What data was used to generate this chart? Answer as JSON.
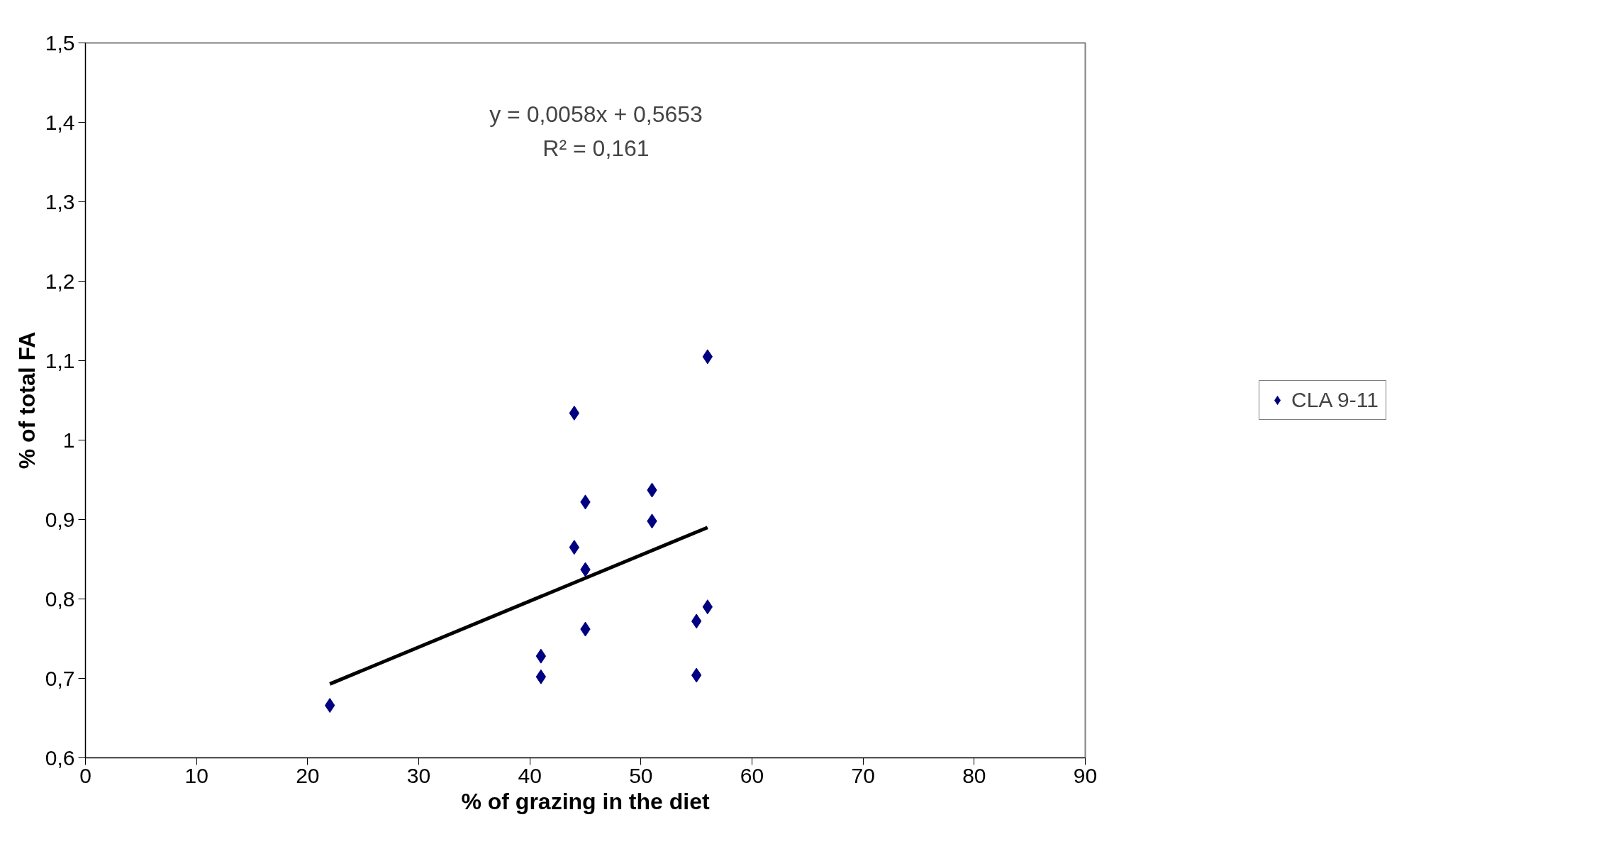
{
  "chart_data": {
    "type": "scatter",
    "xlabel": "% of grazing in the diet",
    "ylabel": "% of total FA",
    "xlim": [
      0,
      90
    ],
    "xticks": [
      0,
      10,
      20,
      30,
      40,
      50,
      60,
      70,
      80,
      90
    ],
    "ylim": [
      0.6,
      1.5
    ],
    "yticks": [
      {
        "value": 0.6,
        "label": "0,6"
      },
      {
        "value": 0.7,
        "label": "0,7"
      },
      {
        "value": 0.8,
        "label": "0,8"
      },
      {
        "value": 0.9,
        "label": "0,9"
      },
      1,
      {
        "value": 1.1,
        "label": "1,1"
      },
      {
        "value": 1.2,
        "label": "1,2"
      },
      {
        "value": 1.3,
        "label": "1,3"
      },
      {
        "value": 1.4,
        "label": "1,4"
      },
      {
        "value": 1.5,
        "label": "1,5"
      }
    ],
    "series": [
      {
        "name": "CLA 9-11",
        "color": "#000080",
        "x": [
          22,
          41,
          41,
          44,
          44,
          45,
          45,
          45,
          51,
          51,
          55,
          55,
          56,
          56
        ],
        "values": [
          0.666,
          0.728,
          0.702,
          1.034,
          0.865,
          0.922,
          0.837,
          0.762,
          0.937,
          0.898,
          0.772,
          0.704,
          1.105,
          0.79
        ],
        "marker": "diamond"
      },
      {
        "type": "line",
        "color": "#000000",
        "x": [
          22,
          56
        ],
        "values": [
          0.693,
          0.89
        ],
        "marker": "none"
      }
    ],
    "annotations": [
      "y = 0,0058x + 0,5653\nR² = 0,161"
    ],
    "grid": false,
    "legend": "right"
  }
}
